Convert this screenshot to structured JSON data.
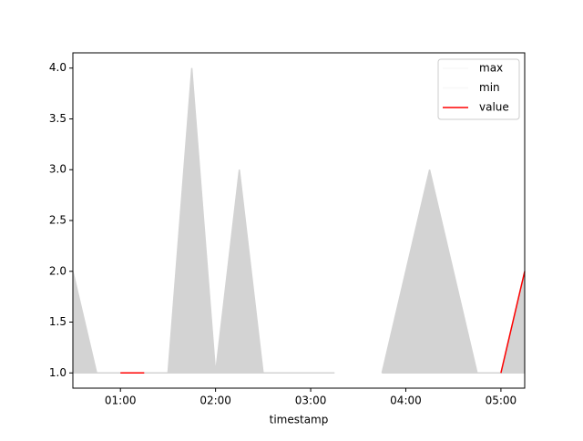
{
  "chart_data": {
    "type": "line",
    "x_label": "timestamp",
    "x": [
      "00:30",
      "00:45",
      "01:00",
      "01:15",
      "01:30",
      "01:45",
      "02:00",
      "02:15",
      "02:30",
      "02:45",
      "03:00",
      "03:15",
      "03:30",
      "03:45",
      "04:00",
      "04:15",
      "04:30",
      "04:45",
      "05:00",
      "05:15"
    ],
    "series": [
      {
        "name": "max",
        "color": "lightgray",
        "values": [
          2,
          1,
          1,
          1,
          1,
          4,
          1,
          3,
          1,
          1,
          1,
          1,
          null,
          1,
          2,
          3,
          2,
          1,
          1,
          2
        ]
      },
      {
        "name": "min",
        "color": "lightgray",
        "values": [
          1,
          1,
          1,
          1,
          1,
          1,
          1,
          1,
          1,
          1,
          1,
          1,
          null,
          1,
          1,
          1,
          1,
          1,
          1,
          1
        ]
      },
      {
        "name": "value",
        "color": "red",
        "values": [
          null,
          null,
          1,
          1,
          null,
          null,
          null,
          null,
          null,
          null,
          null,
          null,
          null,
          null,
          null,
          null,
          null,
          null,
          1,
          2
        ]
      }
    ],
    "fill_between": [
      "max",
      "min"
    ],
    "fill_color": "lightgray",
    "xlim": [
      "00:30",
      "05:15"
    ],
    "xticks": [
      "01:00",
      "02:00",
      "03:00",
      "04:00",
      "05:00"
    ],
    "ylim": [
      0.85,
      4.15
    ],
    "yticks": [
      {
        "value": 1,
        "label": "1.0"
      },
      1.5,
      {
        "value": 2,
        "label": "2.0"
      },
      2.5,
      {
        "value": 3,
        "label": "3.0"
      },
      3.5,
      {
        "value": 4,
        "label": "4.0"
      }
    ],
    "legend": "upper right"
  }
}
